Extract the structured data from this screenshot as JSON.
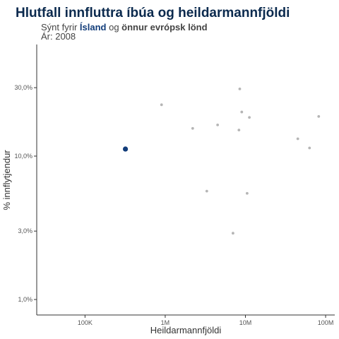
{
  "header": {
    "title": "Hlutfall innfluttra íbúa og heildarmannfjöldi",
    "subtitle_prefix": "Sýnt fyrir ",
    "subtitle_highlight": "Ísland",
    "subtitle_mid": " og ",
    "subtitle_rest": "önnur evrópsk lönd",
    "year_line": "Ár: 2008"
  },
  "colors": {
    "highlight": "#123d7a",
    "others": "#b5b5b5",
    "title": "#0b2a4e"
  },
  "chart_data": {
    "type": "scatter",
    "title": "Hlutfall innfluttra íbúa og heildarmannfjöldi",
    "xlabel": "Heildarmannfjöldi",
    "ylabel": "% innflytjendur",
    "x_scale": "log",
    "y_scale": "log",
    "xlim": [
      25000,
      130000000
    ],
    "ylim": [
      0.0078,
      0.6
    ],
    "x_ticks": [
      100000,
      1000000,
      10000000,
      100000000
    ],
    "x_tick_labels": [
      "100K",
      "1M",
      "10M",
      "100M"
    ],
    "y_ticks": [
      0.01,
      0.03,
      0.1,
      0.3
    ],
    "y_tick_labels": [
      "1,0%",
      "3,0%",
      "10,0%",
      "30,0%"
    ],
    "grid": false,
    "series": [
      {
        "name": "Ísland",
        "highlight": true,
        "points": [
          {
            "x": 319000,
            "y": 0.112
          }
        ]
      },
      {
        "name": "önnur evrópsk lönd",
        "highlight": false,
        "points": [
          {
            "x": 900000,
            "y": 0.228
          },
          {
            "x": 2200000,
            "y": 0.156
          },
          {
            "x": 3300000,
            "y": 0.057
          },
          {
            "x": 4500000,
            "y": 0.165
          },
          {
            "x": 7000000,
            "y": 0.029
          },
          {
            "x": 8300000,
            "y": 0.152
          },
          {
            "x": 8500000,
            "y": 0.294
          },
          {
            "x": 9000000,
            "y": 0.203
          },
          {
            "x": 10500000,
            "y": 0.055
          },
          {
            "x": 11200000,
            "y": 0.186
          },
          {
            "x": 45000000,
            "y": 0.132
          },
          {
            "x": 63000000,
            "y": 0.114
          },
          {
            "x": 82000000,
            "y": 0.189
          }
        ]
      }
    ]
  }
}
